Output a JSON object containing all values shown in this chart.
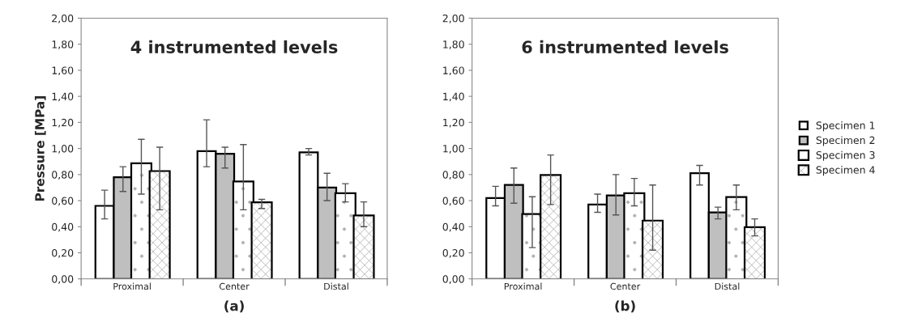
{
  "chart_data": [
    {
      "type": "bar",
      "title": "4 instrumented levels",
      "xlabel": "(a)",
      "ylabel": "Pressure [MPa]",
      "categories": [
        "Proximal",
        "Center",
        "Distal"
      ],
      "series": [
        {
          "color": "#ffffff",
          "values": [
            0.56,
            0.98,
            0.97
          ],
          "errors": [
            [
              0.46,
              0.68
            ],
            [
              0.86,
              1.22
            ],
            [
              0.95,
              1.0
            ]
          ]
        },
        {
          "color": "#bfbfbf",
          "values": [
            0.78,
            0.96,
            0.7
          ],
          "errors": [
            [
              0.67,
              0.86
            ],
            [
              0.85,
              1.01
            ],
            [
              0.6,
              0.81
            ]
          ]
        },
        {
          "color": "#ffffff",
          "values": [
            0.88,
            0.74,
            0.65
          ],
          "errors": [
            [
              0.65,
              1.07
            ],
            [
              0.53,
              1.03
            ],
            [
              0.59,
              0.73
            ]
          ]
        },
        {
          "color": "#ffffff",
          "values": [
            0.82,
            0.58,
            0.48
          ],
          "errors": [
            [
              0.53,
              1.01
            ],
            [
              0.54,
              0.61
            ],
            [
              0.4,
              0.59
            ]
          ]
        }
      ],
      "ylim": [
        0,
        2
      ],
      "yticks": [
        {
          "value": 0,
          "label": "0,00"
        },
        {
          "value": 0.2,
          "label": "0,20"
        },
        {
          "value": 0.4,
          "label": "0,40"
        },
        {
          "value": 0.6,
          "label": "0,60"
        },
        {
          "value": 0.8,
          "label": "0,80"
        },
        {
          "value": 1.0,
          "label": "1,00"
        },
        {
          "value": 1.2,
          "label": "1,20"
        },
        {
          "value": 1.4,
          "label": "1,40"
        },
        {
          "value": 1.6,
          "label": "1,60"
        },
        {
          "value": 1.8,
          "label": "1,80"
        },
        {
          "value": 2.0,
          "label": "2,00"
        }
      ],
      "grid": false,
      "legend": false
    },
    {
      "type": "bar",
      "title": "6 instrumented levels",
      "xlabel": "(b)",
      "categories": [
        "Proximal",
        "Center",
        "Distal"
      ],
      "series": [
        {
          "name": "Specimen 1",
          "color": "#ffffff",
          "values": [
            0.62,
            0.57,
            0.81
          ],
          "errors": [
            [
              0.56,
              0.71
            ],
            [
              0.51,
              0.65
            ],
            [
              0.72,
              0.87
            ]
          ]
        },
        {
          "name": "Specimen 2",
          "color": "#bfbfbf",
          "values": [
            0.72,
            0.64,
            0.51
          ],
          "errors": [
            [
              0.58,
              0.85
            ],
            [
              0.49,
              0.8
            ],
            [
              0.46,
              0.55
            ]
          ]
        },
        {
          "name": "Specimen 3",
          "color": "#ffffff",
          "values": [
            0.49,
            0.65,
            0.62
          ],
          "errors": [
            [
              0.24,
              0.63
            ],
            [
              0.56,
              0.77
            ],
            [
              0.53,
              0.72
            ]
          ]
        },
        {
          "name": "Specimen 4",
          "color": "#ffffff",
          "values": [
            0.79,
            0.44,
            0.39
          ],
          "errors": [
            [
              0.57,
              0.95
            ],
            [
              0.22,
              0.72
            ],
            [
              0.33,
              0.46
            ]
          ]
        }
      ],
      "ylim": [
        0,
        2
      ],
      "yticks": [
        {
          "value": 0,
          "label": "0,00"
        },
        {
          "value": 0.2,
          "label": "0,20"
        },
        {
          "value": 0.4,
          "label": "0,40"
        },
        {
          "value": 0.6,
          "label": "0,60"
        },
        {
          "value": 0.8,
          "label": "0,80"
        },
        {
          "value": 1.0,
          "label": "1,00"
        },
        {
          "value": 1.2,
          "label": "1,20"
        },
        {
          "value": 1.4,
          "label": "1,40"
        },
        {
          "value": 1.6,
          "label": "1,60"
        },
        {
          "value": 1.8,
          "label": "1,80"
        },
        {
          "value": 2.0,
          "label": "2,00"
        }
      ],
      "grid": false,
      "legend": "right"
    }
  ]
}
